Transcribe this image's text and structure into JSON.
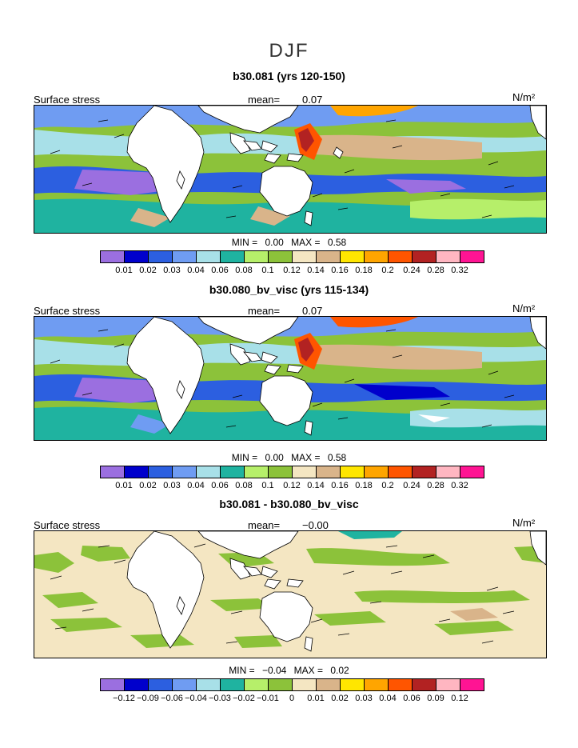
{
  "season": "DJF",
  "colors": [
    "#9b6fe0",
    "#0000cc",
    "#2c5fe0",
    "#6f9cf2",
    "#a8e0e8",
    "#1fb3a0",
    "#b6ef6a",
    "#8cc23a",
    "#f4e6c2",
    "#d9b48a",
    "#ffe600",
    "#ffa500",
    "#ff5500",
    "#b22222",
    "#ffb6c1",
    "#ff1493"
  ],
  "panels": [
    {
      "title": "b30.081 (yrs 120-150)",
      "label": "Surface stress",
      "mean_label": "mean=",
      "mean_value": "0.07",
      "units": "N/m²",
      "min_label": "MIN =",
      "min_value": "0.00",
      "max_label": "MAX =",
      "max_value": "0.58",
      "ticks": [
        "0.01",
        "0.02",
        "0.03",
        "0.04",
        "0.06",
        "0.08",
        "0.1",
        "0.12",
        "0.14",
        "0.16",
        "0.18",
        "0.2",
        "0.24",
        "0.28",
        "0.32"
      ]
    },
    {
      "title": "b30.080_bv_visc (yrs 115-134)",
      "label": "Surface stress",
      "mean_label": "mean=",
      "mean_value": "0.07",
      "units": "N/m²",
      "min_label": "MIN =",
      "min_value": "0.00",
      "max_label": "MAX =",
      "max_value": "0.58",
      "ticks": [
        "0.01",
        "0.02",
        "0.03",
        "0.04",
        "0.06",
        "0.08",
        "0.1",
        "0.12",
        "0.14",
        "0.16",
        "0.18",
        "0.2",
        "0.24",
        "0.28",
        "0.32"
      ]
    },
    {
      "title": "b30.081 - b30.080_bv_visc",
      "label": "Surface stress",
      "mean_label": "mean=",
      "mean_value": "−0.00",
      "units": "N/m²",
      "min_label": "MIN =",
      "min_value": "−0.04",
      "max_label": "MAX =",
      "max_value": "0.02",
      "ticks": [
        "−0.12",
        "−0.09",
        "−0.06",
        "−0.04",
        "−0.03",
        "−0.02",
        "−0.01",
        "0",
        "0.01",
        "0.02",
        "0.03",
        "0.04",
        "0.06",
        "0.09",
        "0.12"
      ]
    }
  ]
}
